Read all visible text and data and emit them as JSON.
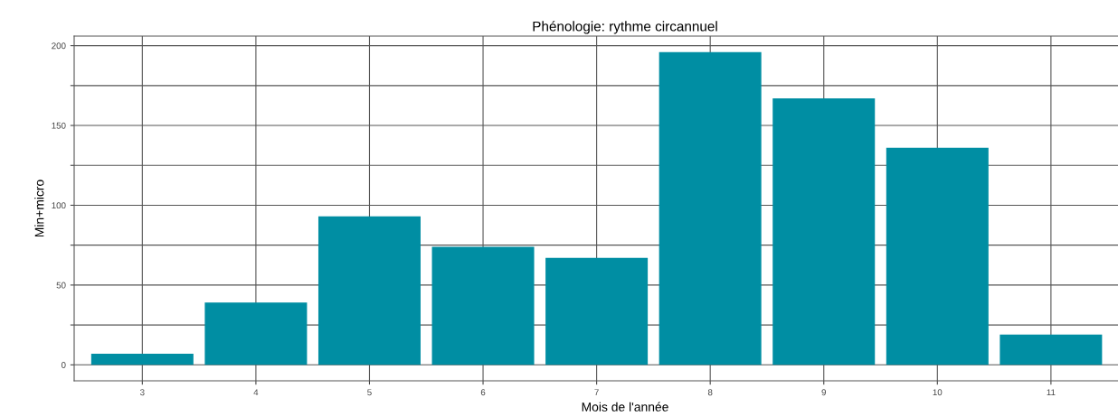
{
  "chart_data": {
    "type": "bar",
    "title": "Phénologie: rythme circannuel",
    "xlabel": "Mois de l'année",
    "ylabel": "Min+micro",
    "categories": [
      "3",
      "4",
      "5",
      "6",
      "7",
      "8",
      "9",
      "10",
      "11"
    ],
    "values": [
      7,
      39,
      93,
      74,
      67,
      196,
      167,
      136,
      19
    ],
    "color": "#008ea3",
    "ylim": [
      -10,
      206
    ],
    "yticks": [
      0,
      {
        "value": 25,
        "label": null
      },
      50,
      {
        "value": 75,
        "label": null
      },
      100,
      {
        "value": 125,
        "label": null
      },
      150,
      {
        "value": 175,
        "label": null
      },
      200
    ],
    "grid": true
  }
}
